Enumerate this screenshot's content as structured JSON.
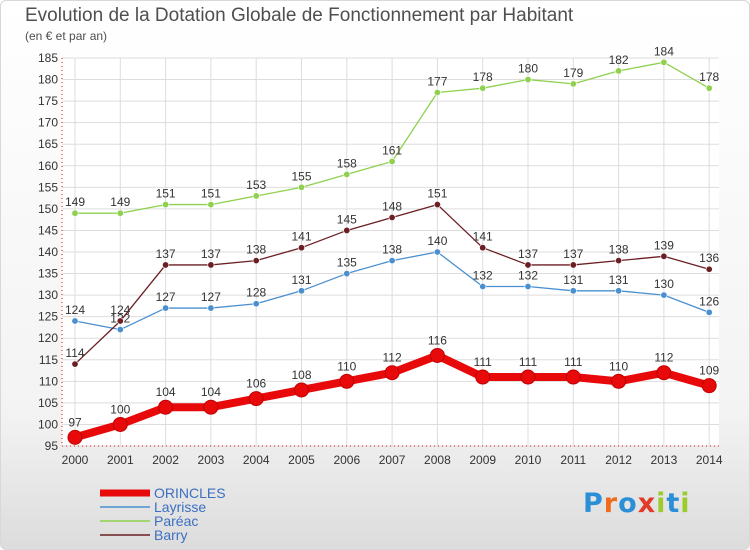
{
  "header": {
    "title": "Evolution de la Dotation Globale de Fonctionnement par Habitant",
    "subtitle": "(en € et par an)"
  },
  "logo": {
    "text": "Proxiti",
    "letters": [
      "P",
      "r",
      "o",
      "x",
      "i",
      "t",
      "i"
    ],
    "colors": [
      "#2b8fd8",
      "#ef6c1d",
      "#2b8fd8",
      "#e23b2a",
      "#9bcc2e",
      "#2b8fd8",
      "#9bcc2e"
    ]
  },
  "chart_data": {
    "type": "line",
    "title": "Evolution de la Dotation Globale de Fonctionnement par Habitant",
    "subtitle": "(en € et par an)",
    "xlabel": "",
    "ylabel": "",
    "ylim": [
      95,
      185
    ],
    "yticks": [
      95,
      100,
      105,
      110,
      115,
      120,
      125,
      130,
      135,
      140,
      145,
      150,
      155,
      160,
      165,
      170,
      175,
      180,
      185
    ],
    "categories": [
      "2000",
      "2001",
      "2002",
      "2003",
      "2004",
      "2005",
      "2006",
      "2007",
      "2008",
      "2009",
      "2010",
      "2011",
      "2012",
      "2013",
      "2014"
    ],
    "legend_position": "bottom-left",
    "grid": true,
    "series": [
      {
        "name": "ORINCLES",
        "color": "#e8090b",
        "width": 8,
        "marker": 7,
        "labelOffset": -11,
        "values": [
          97,
          100,
          104,
          104,
          106,
          108,
          110,
          112,
          116,
          111,
          111,
          111,
          110,
          112,
          109
        ]
      },
      {
        "name": "Layrisse",
        "color": "#4a8fcf",
        "width": 1.3,
        "marker": 3.2,
        "labelOffset": -7,
        "values": [
          124,
          122,
          127,
          127,
          128,
          131,
          135,
          138,
          140,
          132,
          132,
          131,
          131,
          130,
          126
        ]
      },
      {
        "name": "Paréac",
        "color": "#8fd14f",
        "width": 1.3,
        "marker": 3.2,
        "labelOffset": -7,
        "values": [
          149,
          149,
          151,
          151,
          153,
          155,
          158,
          161,
          177,
          178,
          180,
          179,
          182,
          184,
          178
        ]
      },
      {
        "name": "Barry",
        "color": "#6b1f24",
        "width": 1.3,
        "marker": 3.2,
        "labelOffset": -7,
        "values": [
          114,
          124,
          137,
          137,
          138,
          141,
          145,
          148,
          151,
          141,
          137,
          137,
          138,
          139,
          136
        ]
      }
    ]
  }
}
